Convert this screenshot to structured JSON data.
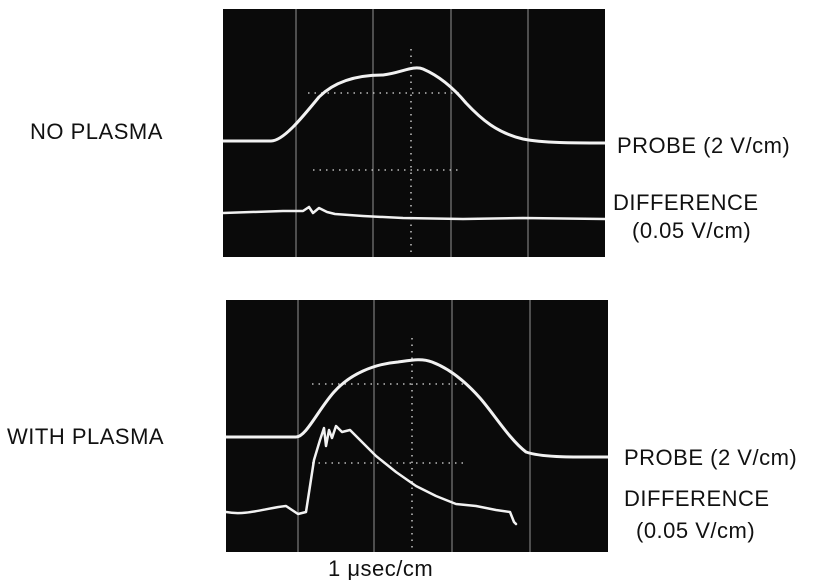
{
  "panels": [
    {
      "side_label": "NO PLASMA",
      "probe_label": "PROBE (2 V/cm)",
      "difference_label": "DIFFERENCE",
      "difference_scale": "(0.05 V/cm)"
    },
    {
      "side_label": "WITH PLASMA",
      "probe_label": "PROBE (2 V/cm)",
      "difference_label": "DIFFERENCE",
      "difference_scale": "(0.05 V/cm)"
    }
  ],
  "time_scale_label": "1 μsec/cm",
  "colors": {
    "screen": "#0a0a0a",
    "trace": "#f2f2f2",
    "text": "#111111",
    "background": "#ffffff"
  }
}
